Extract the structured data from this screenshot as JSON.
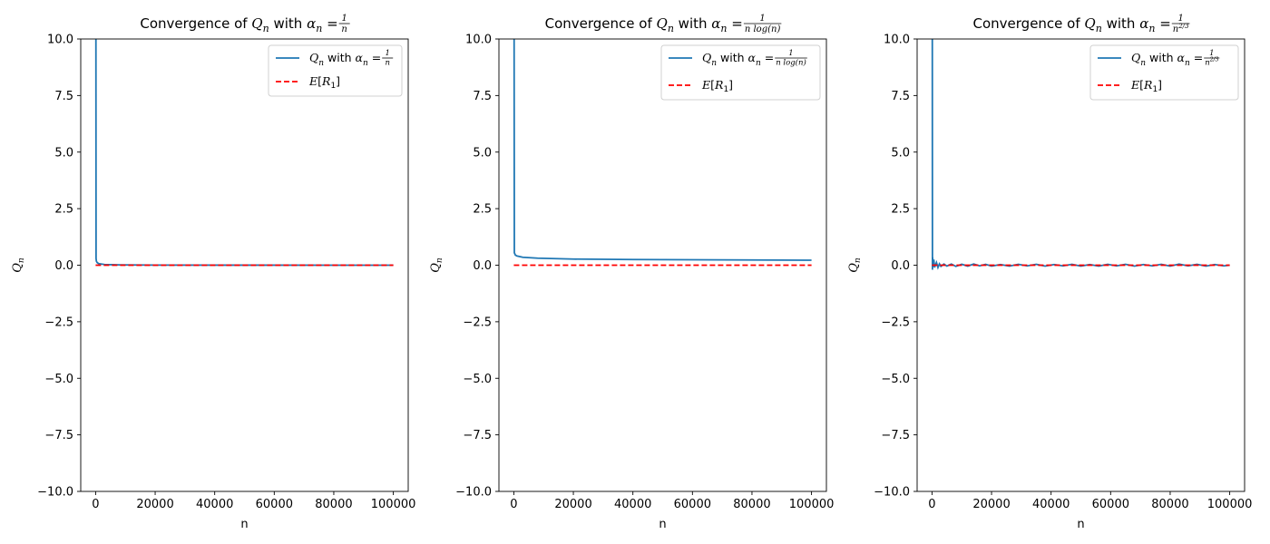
{
  "chart_data": [
    {
      "type": "line",
      "title": {
        "prefix": "Convergence of ",
        "q": "Q",
        "n1": "n",
        "mid": " with ",
        "alpha": "α",
        "n2": "n",
        "eq": " = ",
        "num": "1",
        "den": "n"
      },
      "xlabel": "n",
      "ylabel": {
        "q": "Q",
        "sub": "n"
      },
      "xlim": [
        -5000,
        105000
      ],
      "ylim": [
        -10,
        10
      ],
      "xticks": [
        "0",
        "20000",
        "40000",
        "60000",
        "80000",
        "100000"
      ],
      "xtick_values": [
        0,
        20000,
        40000,
        60000,
        80000,
        100000
      ],
      "yticks": [
        "−10.0",
        "−7.5",
        "−5.0",
        "−2.5",
        "0.0",
        "2.5",
        "5.0",
        "7.5",
        "10.0"
      ],
      "ytick_values": [
        -10,
        -7.5,
        -5,
        -2.5,
        0,
        2.5,
        5,
        7.5,
        10
      ],
      "grid": false,
      "legend_position": "upper right",
      "series": [
        {
          "name": {
            "q": "Q",
            "n1": "n",
            "mid": " with ",
            "alpha": "α",
            "n2": "n",
            "eq": " = ",
            "num": "1",
            "den": "n"
          },
          "color": "#1f77b4",
          "style": "solid",
          "points": [
            [
              0,
              10
            ],
            [
              100,
              10
            ],
            [
              150,
              0.3
            ],
            [
              250,
              0.18
            ],
            [
              500,
              0.12
            ],
            [
              1000,
              0.07
            ],
            [
              3000,
              0.03
            ],
            [
              8000,
              0.015
            ],
            [
              20000,
              0.006
            ],
            [
              50000,
              0.003
            ],
            [
              100000,
              0.0
            ]
          ]
        },
        {
          "name": {
            "e": "E",
            "r": "R",
            "sub": "1"
          },
          "color": "#ff0000",
          "style": "dashed",
          "points": [
            [
              0,
              0
            ],
            [
              100000,
              0
            ]
          ]
        }
      ]
    },
    {
      "type": "line",
      "title": {
        "prefix": "Convergence of ",
        "q": "Q",
        "n1": "n",
        "mid": " with ",
        "alpha": "α",
        "n2": "n",
        "eq": " = ",
        "num": "1",
        "den": "n log(n)"
      },
      "xlabel": "n",
      "ylabel": {
        "q": "Q",
        "sub": "n"
      },
      "xlim": [
        -5000,
        105000
      ],
      "ylim": [
        -10,
        10
      ],
      "xticks": [
        "0",
        "20000",
        "40000",
        "60000",
        "80000",
        "100000"
      ],
      "xtick_values": [
        0,
        20000,
        40000,
        60000,
        80000,
        100000
      ],
      "yticks": [
        "−10.0",
        "−7.5",
        "−5.0",
        "−2.5",
        "0.0",
        "2.5",
        "5.0",
        "7.5",
        "10.0"
      ],
      "ytick_values": [
        -10,
        -7.5,
        -5,
        -2.5,
        0,
        2.5,
        5,
        7.5,
        10
      ],
      "grid": false,
      "legend_position": "upper right",
      "series": [
        {
          "name": {
            "q": "Q",
            "n1": "n",
            "mid": " with ",
            "alpha": "α",
            "n2": "n",
            "eq": " = ",
            "num": "1",
            "den": "n log(n)"
          },
          "color": "#1f77b4",
          "style": "solid",
          "points": [
            [
              0,
              10
            ],
            [
              100,
              10
            ],
            [
              180,
              0.55
            ],
            [
              500,
              0.45
            ],
            [
              1000,
              0.41
            ],
            [
              3000,
              0.35
            ],
            [
              8000,
              0.31
            ],
            [
              20000,
              0.27
            ],
            [
              40000,
              0.25
            ],
            [
              60000,
              0.24
            ],
            [
              80000,
              0.23
            ],
            [
              100000,
              0.22
            ]
          ]
        },
        {
          "name": {
            "e": "E",
            "r": "R",
            "sub": "1"
          },
          "color": "#ff0000",
          "style": "dashed",
          "points": [
            [
              0,
              0
            ],
            [
              100000,
              0
            ]
          ]
        }
      ]
    },
    {
      "type": "line",
      "title": {
        "prefix": "Convergence of ",
        "q": "Q",
        "n1": "n",
        "mid": " with ",
        "alpha": "α",
        "n2": "n",
        "eq": " = ",
        "num": "1",
        "den": "n",
        "den_exp": "2/3"
      },
      "xlabel": "n",
      "ylabel": {
        "q": "Q",
        "sub": "n"
      },
      "xlim": [
        -5000,
        105000
      ],
      "ylim": [
        -10,
        10
      ],
      "xticks": [
        "0",
        "20000",
        "40000",
        "60000",
        "80000",
        "100000"
      ],
      "xtick_values": [
        0,
        20000,
        40000,
        60000,
        80000,
        100000
      ],
      "yticks": [
        "−10.0",
        "−7.5",
        "−5.0",
        "−2.5",
        "0.0",
        "2.5",
        "5.0",
        "7.5",
        "10.0"
      ],
      "ytick_values": [
        -10,
        -7.5,
        -5,
        -2.5,
        0,
        2.5,
        5,
        7.5,
        10
      ],
      "grid": false,
      "legend_position": "upper right",
      "series": [
        {
          "name": {
            "q": "Q",
            "n1": "n",
            "mid": " with ",
            "alpha": "α",
            "n2": "n",
            "eq": " = ",
            "num": "1",
            "den": "n",
            "den_exp": "2/3"
          },
          "color": "#1f77b4",
          "style": "solid",
          "points": [
            [
              0,
              10
            ],
            [
              100,
              10
            ],
            [
              150,
              -0.2
            ],
            [
              200,
              0.35
            ],
            [
              300,
              0.1
            ],
            [
              450,
              -0.1
            ],
            [
              600,
              0.25
            ],
            [
              800,
              0.0
            ],
            [
              1000,
              -0.05
            ],
            [
              1500,
              0.12
            ],
            [
              2000,
              -0.1
            ],
            [
              2500,
              0.06
            ],
            [
              3000,
              -0.05
            ],
            [
              4000,
              0.05
            ],
            [
              5000,
              -0.04
            ],
            [
              6500,
              0.05
            ],
            [
              8000,
              -0.05
            ],
            [
              10000,
              0.04
            ],
            [
              12000,
              -0.04
            ],
            [
              14000,
              0.05
            ],
            [
              16000,
              -0.03
            ],
            [
              18000,
              0.04
            ],
            [
              20000,
              -0.04
            ],
            [
              23000,
              0.03
            ],
            [
              26000,
              -0.04
            ],
            [
              29000,
              0.04
            ],
            [
              32000,
              -0.03
            ],
            [
              35000,
              0.04
            ],
            [
              38000,
              -0.04
            ],
            [
              41000,
              0.03
            ],
            [
              44000,
              -0.03
            ],
            [
              47000,
              0.04
            ],
            [
              50000,
              -0.04
            ],
            [
              53000,
              0.03
            ],
            [
              56000,
              -0.04
            ],
            [
              59000,
              0.04
            ],
            [
              62000,
              -0.03
            ],
            [
              65000,
              0.04
            ],
            [
              68000,
              -0.04
            ],
            [
              71000,
              0.03
            ],
            [
              74000,
              -0.03
            ],
            [
              77000,
              0.04
            ],
            [
              80000,
              -0.04
            ],
            [
              83000,
              0.05
            ],
            [
              86000,
              -0.03
            ],
            [
              89000,
              0.04
            ],
            [
              92000,
              -0.04
            ],
            [
              95000,
              0.03
            ],
            [
              98000,
              -0.03
            ],
            [
              100000,
              0.0
            ]
          ]
        },
        {
          "name": {
            "e": "E",
            "r": "R",
            "sub": "1"
          },
          "color": "#ff0000",
          "style": "dashed",
          "points": [
            [
              0,
              0
            ],
            [
              100000,
              0
            ]
          ]
        }
      ]
    }
  ]
}
